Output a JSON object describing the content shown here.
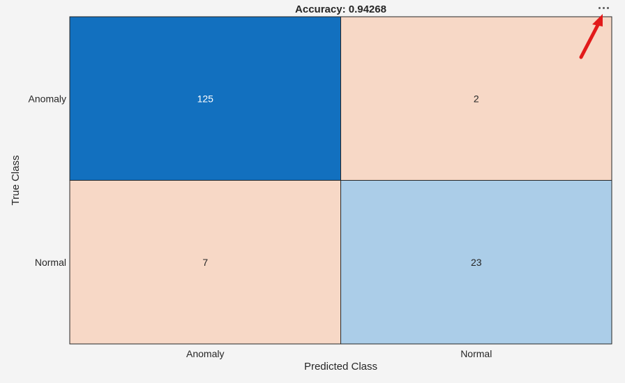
{
  "chart_data": {
    "type": "heatmap",
    "title": "Accuracy: 0.94268",
    "xlabel": "Predicted Class",
    "ylabel": "True Class",
    "x_categories": [
      "Anomaly",
      "Normal"
    ],
    "y_categories": [
      "Anomaly",
      "Normal"
    ],
    "values": [
      [
        125,
        2
      ],
      [
        7,
        23
      ]
    ],
    "diagonal_color": "#1270bf",
    "diagonal_light_color": "#abcde8",
    "offdiagonal_color": "#f7d8c6",
    "grid": false,
    "legend": "none"
  },
  "toolbar": {
    "menu_icon": "more-horizontal-icon"
  },
  "annotation": {
    "arrow_icon": "red-arrow-icon",
    "arrow_color": "#e21a1a"
  }
}
